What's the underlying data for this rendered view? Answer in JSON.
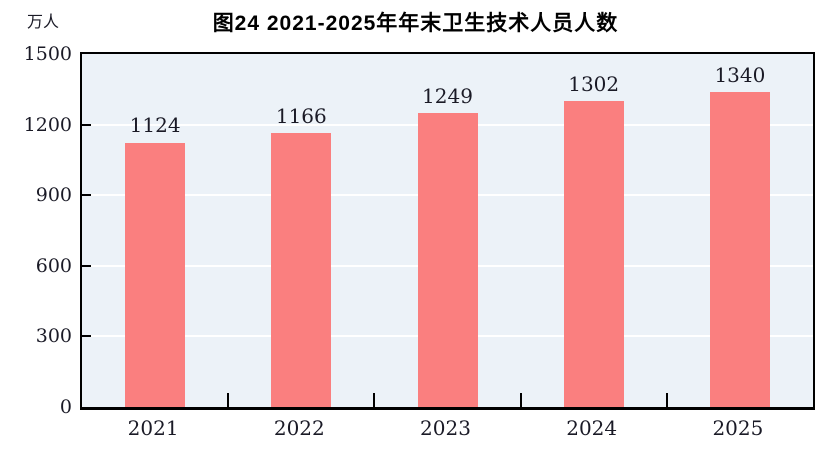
{
  "title": "图24  2021-2025年年末卫生技术人员人数",
  "unit_label": "万人",
  "chart_data": {
    "type": "bar",
    "title": "图24  2021-2025年年末卫生技术人员人数",
    "ylabel_unit": "万人",
    "categories": [
      "2021",
      "2022",
      "2023",
      "2024",
      "2025"
    ],
    "values": [
      1124,
      1166,
      1249,
      1302,
      1340
    ],
    "ylim": [
      0,
      1500
    ],
    "yticks": [
      0,
      300,
      600,
      900,
      1200,
      1500
    ],
    "grid": "horizontal white gridlines",
    "legend": "none",
    "colors": {
      "bar": "#FA7F7F",
      "plot_background": "#ECF2F8",
      "axis": "#000000",
      "gridline": "#FFFFFF",
      "text": "#1A1A26"
    }
  }
}
